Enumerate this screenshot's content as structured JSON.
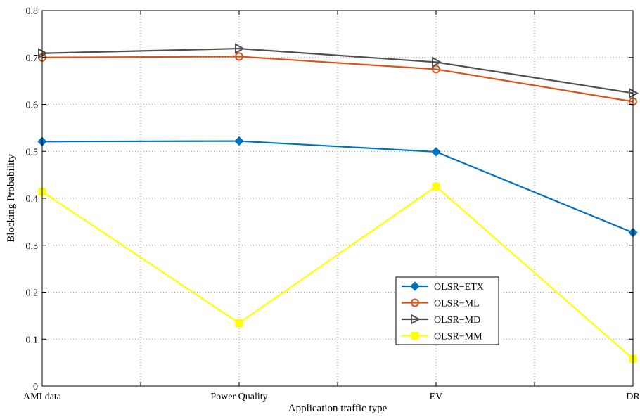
{
  "chart_data": {
    "type": "line",
    "categories": [
      "AMI data",
      "Power Quality",
      "EV",
      "DR"
    ],
    "xlabel": "Application traffic type",
    "ylabel": "Blocking Probability",
    "ylim": [
      0,
      0.8
    ],
    "yticks": [
      "0",
      "0.1",
      "0.2",
      "0.3",
      "0.4",
      "0.5",
      "0.6",
      "0.7",
      "0.8"
    ],
    "grid": true,
    "legend_position": "lower-right",
    "series": [
      {
        "name": "OLSR−ETX",
        "color": "#0072bd",
        "marker": "diamond",
        "values": [
          0.521,
          0.522,
          0.499,
          0.327
        ]
      },
      {
        "name": "OLSR−ML",
        "color": "#d95319",
        "marker": "circle",
        "values": [
          0.7,
          0.702,
          0.675,
          0.606
        ]
      },
      {
        "name": "OLSR−MD",
        "color": "#505050",
        "marker": "triangle-right",
        "values": [
          0.709,
          0.719,
          0.69,
          0.624
        ]
      },
      {
        "name": "OLSR−MM",
        "color": "#ffff00",
        "marker": "square",
        "values": [
          0.414,
          0.134,
          0.425,
          0.058
        ]
      }
    ]
  }
}
